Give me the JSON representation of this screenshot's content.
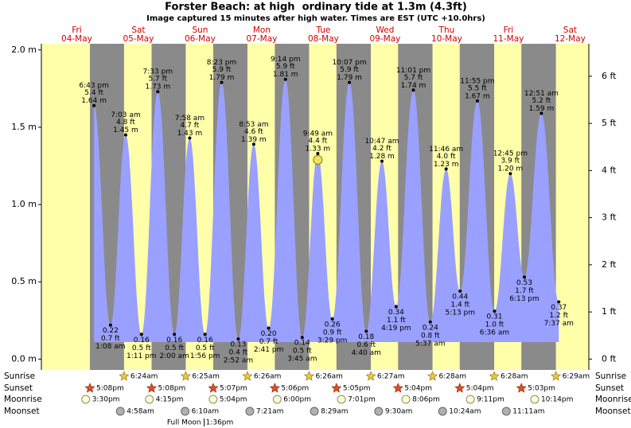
{
  "chart_data": {
    "type": "tide",
    "title": "Forster Beach: at high  ordinary tide at 1.3m (4.3ft)",
    "subtitle": "Image captured 15 minutes after high water. Times are EST (UTC +10.0hrs)",
    "days": [
      {
        "weekday": "Fri",
        "date": "04-May"
      },
      {
        "weekday": "Sat",
        "date": "05-May"
      },
      {
        "weekday": "Sun",
        "date": "06-May"
      },
      {
        "weekday": "Mon",
        "date": "07-May"
      },
      {
        "weekday": "Tue",
        "date": "08-May"
      },
      {
        "weekday": "Wed",
        "date": "09-May"
      },
      {
        "weekday": "Thu",
        "date": "10-May"
      },
      {
        "weekday": "Fri",
        "date": "11-May"
      },
      {
        "weekday": "Sat",
        "date": "12-May"
      }
    ],
    "x": [
      "04-May 18:43",
      "05-May 01:08",
      "05-May 07:03",
      "05-May 13:11",
      "05-May 19:33",
      "06-May 02:00",
      "06-May 07:58",
      "06-May 13:56",
      "06-May 20:23",
      "07-May 02:52",
      "07-May 08:53",
      "07-May 14:41",
      "07-May 21:14",
      "08-May 03:45",
      "08-May 09:49",
      "08-May 15:29",
      "08-May 22:07",
      "09-May 04:40",
      "09-May 10:47",
      "09-May 16:19",
      "09-May 23:01",
      "10-May 05:37",
      "10-May 11:46",
      "10-May 17:13",
      "10-May 23:55",
      "11-May 06:36",
      "11-May 12:45",
      "11-May 18:13",
      "12-May 00:51",
      "12-May 07:37"
    ],
    "time_labels": [
      "6:43 pm",
      "1:08 am",
      "7:03 am",
      "1:11 pm",
      "7:33 pm",
      "2:00 am",
      "7:58 am",
      "1:56 pm",
      "8:23 pm",
      "2:52 am",
      "8:53 am",
      "2:41 pm",
      "9:14 pm",
      "3:45 am",
      "9:49 am",
      "3:29 pm",
      "10:07 pm",
      "4:40 am",
      "10:47 am",
      "4:19 pm",
      "11:01 pm",
      "5:37 am",
      "11:46 am",
      "5:13 pm",
      "11:55 pm",
      "6:36 am",
      "12:45 pm",
      "6:13 pm",
      "12:51 am",
      "7:37 am"
    ],
    "values": [
      1.64,
      0.22,
      1.45,
      0.16,
      1.73,
      0.16,
      1.43,
      0.16,
      1.79,
      0.13,
      1.39,
      0.2,
      1.81,
      0.14,
      1.33,
      0.26,
      1.79,
      0.18,
      1.28,
      0.34,
      1.74,
      0.24,
      1.23,
      0.44,
      1.67,
      0.31,
      1.2,
      0.53,
      1.59,
      0.37
    ],
    "value_labels": [
      "1.64 m",
      "0.22",
      "1.45 m",
      "0.16",
      "1.73 m",
      "0.16",
      "1.43 m",
      "0.16",
      "1.79 m",
      "0.13",
      "1.39 m",
      "0.20",
      "1.81 m",
      "0.14",
      "1.33 m",
      "0.26",
      "1.79 m",
      "0.18",
      "1.28 m",
      "0.34",
      "1.74 m",
      "0.24",
      "1.23 m",
      "0.44",
      "1.67 m",
      "0.31",
      "1.20 m",
      "0.53",
      "1.59 m",
      "0.37"
    ],
    "values_ft": [
      5.4,
      0.7,
      4.8,
      0.5,
      5.7,
      0.5,
      4.7,
      0.5,
      5.9,
      0.4,
      4.6,
      0.7,
      5.9,
      0.5,
      4.4,
      0.9,
      5.9,
      0.6,
      4.2,
      1.1,
      5.7,
      0.8,
      4.0,
      1.4,
      5.5,
      1.0,
      3.9,
      1.7,
      5.2,
      1.2
    ],
    "value_labels_ft": [
      "5.4 ft",
      "0.7 ft",
      "4.8 ft",
      "0.5 ft",
      "5.7 ft",
      "0.5 ft",
      "4.7 ft",
      "0.5 ft",
      "5.9 ft",
      "0.4 ft",
      "4.6 ft",
      "0.7 ft",
      "5.9 ft",
      "0.5 ft",
      "4.4 ft",
      "0.9 ft",
      "5.9 ft",
      "0.6 ft",
      "4.2 ft",
      "1.1 ft",
      "5.7 ft",
      "0.8 ft",
      "4.0 ft",
      "1.4 ft",
      "5.5 ft",
      "1.0 ft",
      "3.9 ft",
      "1.7 ft",
      "5.2 ft",
      "1.2 ft"
    ],
    "color": "#9aa0ff",
    "ylim": [
      -0.07,
      2.04
    ],
    "yticks": [
      {
        "value": 0,
        "label": "0.0 m"
      },
      {
        "value": 0.5,
        "label": "0.5 m"
      },
      {
        "value": 1,
        "label": "1.0 m"
      },
      {
        "value": 1.5,
        "label": "1.5 m"
      },
      {
        "value": 2,
        "label": "2.0 m"
      }
    ],
    "y2lim": [
      -0.23,
      6.69
    ],
    "y2ticks": [
      {
        "value": 0,
        "label": "0 ft"
      },
      {
        "value": 1,
        "label": "1 ft"
      },
      {
        "value": 2,
        "label": "2 ft"
      },
      {
        "value": 3,
        "label": "3 ft"
      },
      {
        "value": 4,
        "label": "4 ft"
      },
      {
        "value": 5,
        "label": "5 ft"
      },
      {
        "value": 6,
        "label": "6 ft"
      }
    ],
    "sunrise": {
      "label": "Sunrise",
      "x": [
        "05-May 06:24",
        "06-May 06:25",
        "07-May 06:26",
        "08-May 06:26",
        "09-May 06:27",
        "10-May 06:28",
        "11-May 06:28",
        "12-May 06:29"
      ],
      "labels": [
        "6:24am",
        "6:25am",
        "6:26am",
        "6:26am",
        "6:27am",
        "6:28am",
        "6:28am",
        "6:29am"
      ]
    },
    "sunset": {
      "label": "Sunset",
      "x": [
        "04-May 17:08",
        "05-May 17:08",
        "06-May 17:07",
        "07-May 17:06",
        "08-May 17:05",
        "09-May 17:04",
        "10-May 17:04",
        "11-May 17:03"
      ],
      "labels": [
        "5:08pm",
        "5:08pm",
        "5:07pm",
        "5:06pm",
        "5:05pm",
        "5:04pm",
        "5:04pm",
        "5:03pm"
      ]
    },
    "moonrise": {
      "label": "Moonrise",
      "x": [
        "04-May 15:30",
        "05-May 16:15",
        "06-May 17:04",
        "07-May 18:00",
        "08-May 19:01",
        "09-May 20:06",
        "10-May 21:11",
        "11-May 22:14"
      ],
      "labels": [
        "3:30pm",
        "4:15pm",
        "5:04pm",
        "6:00pm",
        "7:01pm",
        "8:06pm",
        "9:11pm",
        "10:14pm"
      ]
    },
    "moonset": {
      "label": "Moonset",
      "x": [
        "05-May 04:58",
        "06-May 06:10",
        "07-May 07:21",
        "08-May 08:29",
        "09-May 09:30",
        "10-May 10:24",
        "11-May 11:11"
      ],
      "labels": [
        "4:58am",
        "6:10am",
        "7:21am",
        "8:29am",
        "9:30am",
        "10:24am",
        "11:11am"
      ]
    },
    "moon_phase": {
      "name": "Full Moon",
      "x": "06-May 13:36",
      "time": "1:36pm"
    }
  }
}
